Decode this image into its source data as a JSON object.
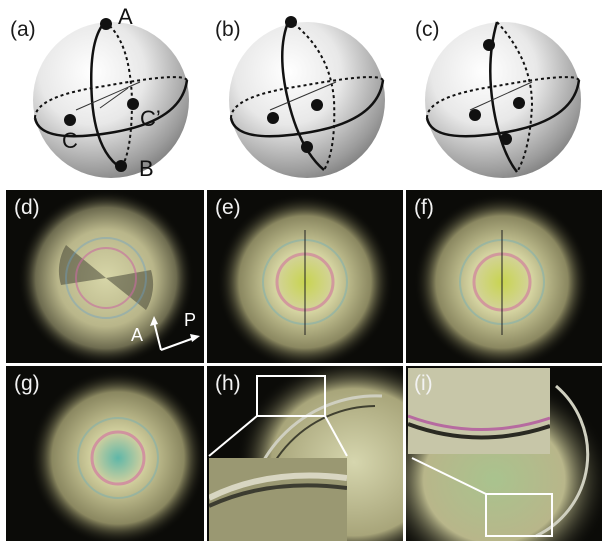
{
  "figure": {
    "panels_top": [
      {
        "label": "(a)",
        "points": {
          "A": "A",
          "B": "B",
          "C": "C",
          "C_prime": "C’"
        }
      },
      {
        "label": "(b)"
      },
      {
        "label": "(c)"
      }
    ],
    "panels_bottom": [
      {
        "label": "(d)"
      },
      {
        "label": "(e)"
      },
      {
        "label": "(f)"
      },
      {
        "label": "(g)"
      },
      {
        "label": "(h)"
      },
      {
        "label": "(i)"
      }
    ],
    "polarizer": {
      "analyzer": "A",
      "polarizer": "P"
    }
  }
}
